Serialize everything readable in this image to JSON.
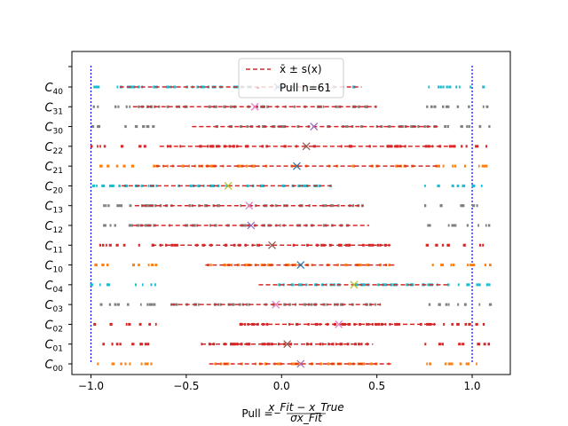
{
  "chart_data": {
    "type": "scatter",
    "xlabel": "Pull = (x_Fit − x_True) / σx_Fit",
    "xlabel_parts": {
      "prefix": "Pull = ",
      "numerator": "x_Fit − x_True",
      "denominator": "σx_Fit"
    },
    "xlim": [
      -1.1,
      1.2
    ],
    "xticks": [
      -1.0,
      -0.5,
      0.0,
      0.5,
      1.0
    ],
    "xtick_labels": [
      "−1.0",
      "−0.5",
      "0.0",
      "0.5",
      "1.0"
    ],
    "categories": [
      {
        "label": "C",
        "sub": "00"
      },
      {
        "label": "C",
        "sub": "01"
      },
      {
        "label": "C",
        "sub": "02"
      },
      {
        "label": "C",
        "sub": "03"
      },
      {
        "label": "C",
        "sub": "04"
      },
      {
        "label": "C",
        "sub": "10"
      },
      {
        "label": "C",
        "sub": "11"
      },
      {
        "label": "C",
        "sub": "12"
      },
      {
        "label": "C",
        "sub": "13"
      },
      {
        "label": "C",
        "sub": "20"
      },
      {
        "label": "C",
        "sub": "21"
      },
      {
        "label": "C",
        "sub": "22"
      },
      {
        "label": "C",
        "sub": "30"
      },
      {
        "label": "C",
        "sub": "31"
      },
      {
        "label": "C",
        "sub": "40"
      }
    ],
    "reference_lines": [
      -1.0,
      1.0
    ],
    "reference_color": "#0000ff",
    "legend": {
      "placement": "upper center",
      "entries": [
        {
          "label": "x̄ ± s(x)",
          "style": "dashed-line",
          "color": "#d62728"
        },
        {
          "label": "Pull n=61",
          "style": "marker",
          "color": "#ffb6c1"
        }
      ]
    },
    "series": [
      {
        "mean": 0.1,
        "lo": -0.38,
        "hi": 0.58,
        "color": "#ff7f0e",
        "seed": 11
      },
      {
        "mean": 0.03,
        "lo": -0.42,
        "hi": 0.48,
        "color": "#d62728",
        "seed": 12
      },
      {
        "mean": 0.3,
        "lo": -0.22,
        "hi": 0.82,
        "color": "#d62728",
        "seed": 13
      },
      {
        "mean": -0.03,
        "lo": -0.58,
        "hi": 0.52,
        "color": "#7f7f7f",
        "seed": 14
      },
      {
        "mean": 0.38,
        "lo": -0.12,
        "hi": 0.88,
        "color": "#17becf",
        "seed": 15
      },
      {
        "mean": 0.1,
        "lo": -0.4,
        "hi": 0.6,
        "color": "#ff7f0e",
        "seed": 16
      },
      {
        "mean": -0.05,
        "lo": -0.68,
        "hi": 0.58,
        "color": "#d62728",
        "seed": 17
      },
      {
        "mean": -0.16,
        "lo": -0.78,
        "hi": 0.46,
        "color": "#7f7f7f",
        "seed": 18
      },
      {
        "mean": -0.17,
        "lo": -0.77,
        "hi": 0.43,
        "color": "#7f7f7f",
        "seed": 19
      },
      {
        "mean": -0.28,
        "lo": -0.84,
        "hi": 0.26,
        "color": "#17becf",
        "seed": 20
      },
      {
        "mean": 0.08,
        "lo": -0.66,
        "hi": 0.82,
        "color": "#ff7f0e",
        "seed": 21
      },
      {
        "mean": 0.13,
        "lo": -0.64,
        "hi": 0.92,
        "color": "#d62728",
        "seed": 22
      },
      {
        "mean": 0.17,
        "lo": -0.47,
        "hi": 0.82,
        "color": "#7f7f7f",
        "seed": 23
      },
      {
        "mean": -0.14,
        "lo": -0.78,
        "hi": 0.5,
        "color": "#7f7f7f",
        "seed": 24
      },
      {
        "mean": -0.02,
        "lo": -0.85,
        "hi": 0.42,
        "color": "#17becf",
        "seed": 25
      }
    ]
  }
}
